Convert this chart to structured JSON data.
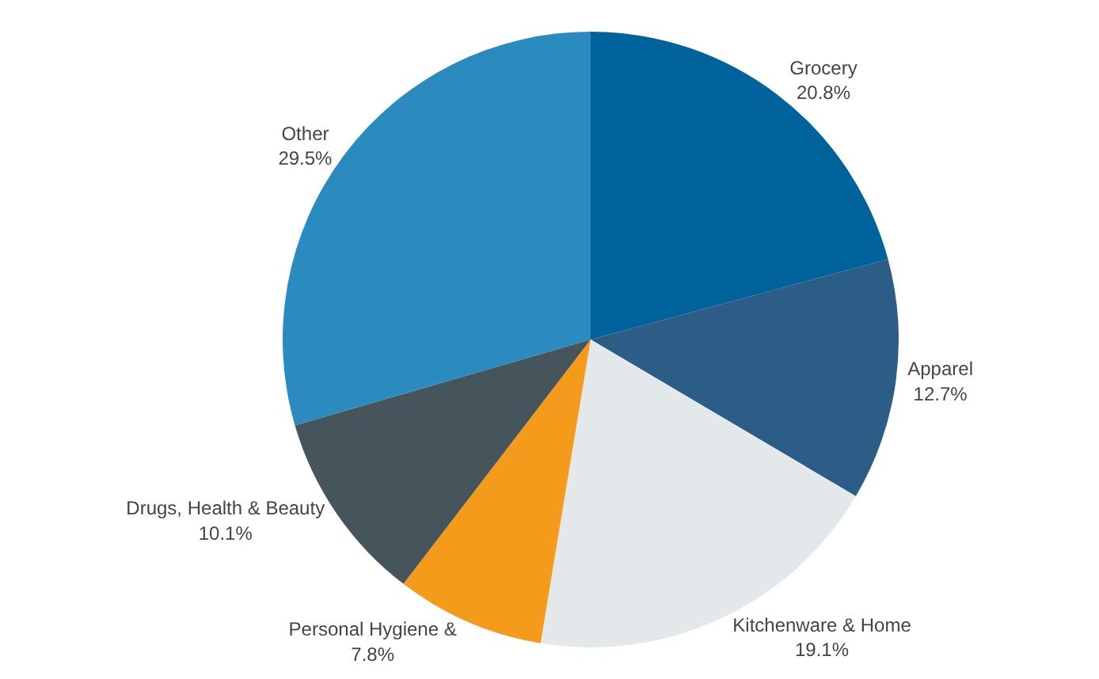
{
  "chart_data": {
    "type": "pie",
    "categories": [
      "Grocery",
      "Apparel",
      "Kitchenware & Home",
      "Personal Hygiene &",
      "Drugs, Health & Beauty",
      "Other"
    ],
    "values": [
      20.8,
      12.7,
      19.1,
      7.8,
      10.1,
      29.5
    ],
    "value_labels": [
      "20.8%",
      "12.7%",
      "19.1%",
      "7.8%",
      "10.1%",
      "29.5%"
    ],
    "colors": [
      "#00629b",
      "#2c5d86",
      "#e3e8ea",
      "#f49b1c",
      "#46545c",
      "#2b8bbe"
    ],
    "legend": false
  }
}
